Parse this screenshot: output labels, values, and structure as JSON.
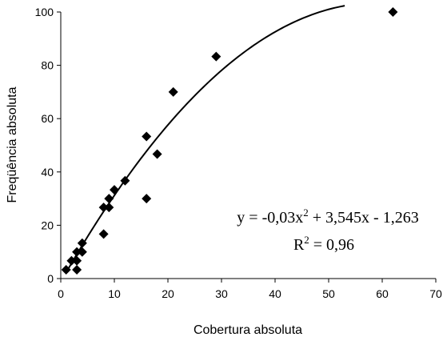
{
  "chart_data": {
    "type": "scatter",
    "xlabel": "Cobertura absoluta",
    "ylabel": "Freqüência absoluta",
    "xlim": [
      0,
      70
    ],
    "ylim": [
      0,
      100
    ],
    "x_ticks": [
      "0",
      "10",
      "20",
      "30",
      "40",
      "50",
      "60",
      "70"
    ],
    "y_ticks": [
      "0",
      "20",
      "40",
      "60",
      "80",
      "100"
    ],
    "grid": false,
    "legend": "none",
    "marker": "diamond",
    "marker_color": "#000000",
    "points": [
      {
        "x": 1,
        "y": 3.3
      },
      {
        "x": 2,
        "y": 6.7
      },
      {
        "x": 3,
        "y": 3.3
      },
      {
        "x": 3,
        "y": 6.7
      },
      {
        "x": 3,
        "y": 10
      },
      {
        "x": 4,
        "y": 10
      },
      {
        "x": 4,
        "y": 13.3
      },
      {
        "x": 8,
        "y": 16.7
      },
      {
        "x": 8,
        "y": 26.7
      },
      {
        "x": 9,
        "y": 26.7
      },
      {
        "x": 9,
        "y": 30
      },
      {
        "x": 10,
        "y": 33.3
      },
      {
        "x": 12,
        "y": 36.7
      },
      {
        "x": 16,
        "y": 30
      },
      {
        "x": 16,
        "y": 53.3
      },
      {
        "x": 18,
        "y": 46.7
      },
      {
        "x": 21,
        "y": 70
      },
      {
        "x": 29,
        "y": 83.3
      },
      {
        "x": 62,
        "y": 100
      }
    ],
    "trendline": {
      "type": "polynomial",
      "coefficients": {
        "a": -0.03,
        "b": 3.545,
        "c": -1.263
      },
      "x_range": [
        1,
        53
      ],
      "equation_lhs": "y = -0,03x",
      "equation_sup": "2",
      "equation_rhs": " + 3,545x - 1,263",
      "r2_lhs": "R",
      "r2_sup": "2",
      "r2_rhs": " = 0,96"
    }
  }
}
